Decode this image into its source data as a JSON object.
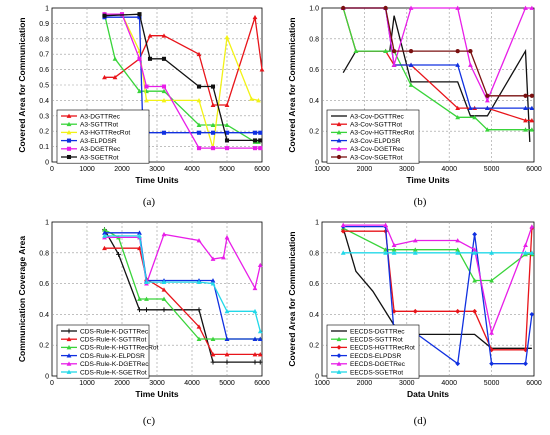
{
  "chart_data": [
    {
      "id": "a",
      "type": "line",
      "caption": "(a)",
      "xlabel": "Time Units",
      "ylabel": "Covered Area for Communication",
      "xlim": [
        0,
        6000
      ],
      "ylim": [
        0,
        1.0
      ],
      "xticks": [
        0,
        1000,
        2000,
        3000,
        4000,
        5000,
        6000
      ],
      "yticks": [
        0,
        0.1,
        0.2,
        0.3,
        0.4,
        0.5,
        0.6,
        0.7,
        0.8,
        0.9,
        1.0
      ],
      "ytick_labels": [
        "0",
        "0.1",
        "0.2",
        "0.3",
        "0.4",
        "0.5",
        "0.6",
        "0.7",
        "0.8",
        "0.9",
        "1"
      ],
      "grid": "both",
      "legend": "bottom-left",
      "series": [
        {
          "name": "A3-DGTTRec",
          "color": "#e8141a",
          "marker": "triangle",
          "x": [
            1500,
            1800,
            2500,
            2800,
            3200,
            4200,
            4600,
            5000,
            5800,
            6000
          ],
          "y": [
            0.55,
            0.55,
            0.67,
            0.82,
            0.82,
            0.7,
            0.37,
            0.37,
            0.94,
            0.6
          ]
        },
        {
          "name": "A3-SGTTRot",
          "color": "#39d43a",
          "marker": "triangle",
          "x": [
            1500,
            1800,
            2500,
            2700,
            3200,
            4200,
            4600,
            5000,
            5800,
            5900
          ],
          "y": [
            0.96,
            0.67,
            0.46,
            0.46,
            0.46,
            0.24,
            0.24,
            0.24,
            0.13,
            0.13
          ]
        },
        {
          "name": "A3-HGTTRecRot",
          "color": "#f2f216",
          "marker": "triangle",
          "x": [
            1500,
            2000,
            2500,
            2700,
            3200,
            4200,
            4600,
            5000,
            5700,
            5900
          ],
          "y": [
            0.96,
            0.96,
            0.72,
            0.4,
            0.4,
            0.4,
            0.09,
            0.81,
            0.41,
            0.4
          ]
        },
        {
          "name": "A3-ELPDSR",
          "color": "#1030e0",
          "marker": "square",
          "x": [
            1500,
            2500,
            2600,
            3200,
            4200,
            4600,
            5000,
            5800,
            5950
          ],
          "y": [
            0.94,
            0.94,
            0.19,
            0.19,
            0.19,
            0.19,
            0.19,
            0.19,
            0.19
          ]
        },
        {
          "name": "A3-DGETRec",
          "color": "#e81ee8",
          "marker": "square",
          "x": [
            1500,
            2000,
            2500,
            2700,
            3200,
            4200,
            4600,
            5000,
            5800,
            5950
          ],
          "y": [
            0.96,
            0.96,
            0.67,
            0.49,
            0.49,
            0.09,
            0.09,
            0.09,
            0.09,
            0.09
          ]
        },
        {
          "name": "A3-SGETRot",
          "color": "#111111",
          "marker": "square",
          "x": [
            1500,
            2500,
            2800,
            3200,
            4200,
            4600,
            5000,
            5800,
            5950
          ],
          "y": [
            0.95,
            0.96,
            0.67,
            0.67,
            0.49,
            0.49,
            0.14,
            0.14,
            0.14
          ]
        }
      ]
    },
    {
      "id": "b",
      "type": "line",
      "caption": "(b)",
      "xlabel": "Time Units",
      "ylabel": "Covered Area for Communication",
      "xlim": [
        1000,
        6000
      ],
      "ylim": [
        0,
        1.0
      ],
      "xticks": [
        1000,
        2000,
        3000,
        4000,
        5000,
        6000
      ],
      "yticks": [
        0,
        0.2,
        0.4,
        0.6,
        0.8,
        1.0
      ],
      "ytick_labels": [
        "0",
        "0.2",
        "0.4",
        "0.6",
        "0.8",
        "1.0"
      ],
      "grid": "both",
      "legend": "bottom-left",
      "series": [
        {
          "name": "A3-Cov-DGTTRec",
          "color": "#111111",
          "marker": "none",
          "x": [
            1500,
            1800,
            2600,
            2700,
            3100,
            4200,
            4500,
            4900,
            5800,
            5900
          ],
          "y": [
            0.58,
            0.72,
            0.72,
            0.95,
            0.52,
            0.52,
            0.3,
            0.3,
            0.72,
            0.13
          ]
        },
        {
          "name": "A3-Cov-SGTTRot",
          "color": "#e8141a",
          "marker": "triangle",
          "x": [
            1500,
            1800,
            2500,
            2700,
            3100,
            4200,
            4600,
            4900,
            5800,
            5950
          ],
          "y": [
            1.0,
            0.72,
            0.72,
            0.63,
            0.63,
            0.35,
            0.35,
            0.35,
            0.27,
            0.27
          ]
        },
        {
          "name": "A3-Cov-HGTTRecRot",
          "color": "#39d43a",
          "marker": "triangle",
          "x": [
            1500,
            1800,
            2500,
            2700,
            3100,
            4200,
            4600,
            4900,
            5800,
            5950
          ],
          "y": [
            1.0,
            0.72,
            0.72,
            0.72,
            0.5,
            0.29,
            0.29,
            0.21,
            0.21,
            0.21
          ]
        },
        {
          "name": "A3-Cov-ELPDSR",
          "color": "#1030e0",
          "marker": "triangle",
          "x": [
            1500,
            2500,
            2700,
            3100,
            4200,
            4500,
            4900,
            5800,
            5950
          ],
          "y": [
            1.0,
            1.0,
            0.63,
            0.63,
            0.63,
            0.35,
            0.35,
            0.35,
            0.35
          ]
        },
        {
          "name": "A3-Cov-DGETRec",
          "color": "#e81ee8",
          "marker": "triangle",
          "x": [
            1500,
            2500,
            2700,
            3100,
            4200,
            4500,
            4900,
            5800,
            5950
          ],
          "y": [
            1.0,
            1.0,
            0.63,
            1.0,
            1.0,
            0.63,
            0.4,
            1.0,
            1.0
          ]
        },
        {
          "name": "A3-Cov-SGETRot",
          "color": "#7a1010",
          "marker": "circle",
          "x": [
            1500,
            2500,
            2700,
            3100,
            4200,
            4500,
            4900,
            5800,
            5950
          ],
          "y": [
            1.0,
            1.0,
            0.72,
            0.72,
            0.72,
            0.72,
            0.43,
            0.43,
            0.43
          ]
        }
      ]
    },
    {
      "id": "c",
      "type": "line",
      "caption": "(c)",
      "xlabel": "Time Units",
      "ylabel": "Communication Coverage Area",
      "xlim": [
        0,
        6000
      ],
      "ylim": [
        0,
        1.0
      ],
      "xticks": [
        0,
        1000,
        2000,
        3000,
        4000,
        5000,
        6000
      ],
      "yticks": [
        0,
        0.2,
        0.4,
        0.6,
        0.8,
        1.0
      ],
      "ytick_labels": [
        "0",
        "0.2",
        "0.4",
        "0.6",
        "0.8",
        "1"
      ],
      "grid": "both",
      "legend": "bottom-left",
      "series": [
        {
          "name": "CDS-Rule-K-DGTTRec",
          "color": "#111111",
          "marker": "plus",
          "x": [
            1500,
            1900,
            2500,
            2700,
            3200,
            4200,
            4600,
            5000,
            5800,
            5950
          ],
          "y": [
            0.95,
            0.79,
            0.43,
            0.43,
            0.43,
            0.43,
            0.09,
            0.09,
            0.09,
            0.09
          ]
        },
        {
          "name": "CDS-Rule-K-SGTTRot",
          "color": "#e8141a",
          "marker": "triangle",
          "x": [
            1500,
            2500,
            2700,
            3200,
            4200,
            4600,
            5000,
            5800,
            5950
          ],
          "y": [
            0.83,
            0.83,
            0.63,
            0.56,
            0.32,
            0.14,
            0.14,
            0.14,
            0.14
          ]
        },
        {
          "name": "CDS-Rule-K-HGTTRecRot",
          "color": "#39d43a",
          "marker": "triangle",
          "x": [
            1500,
            1900,
            2500,
            2700,
            3200,
            4200,
            4600,
            5000,
            5800,
            5950
          ],
          "y": [
            0.95,
            0.9,
            0.5,
            0.5,
            0.5,
            0.24,
            0.24,
            0.24,
            0.24,
            0.24
          ]
        },
        {
          "name": "CDS-Rule-K-ELPDSR",
          "color": "#1030e0",
          "marker": "triangle",
          "x": [
            1500,
            2500,
            2700,
            3200,
            4200,
            4600,
            5000,
            5800,
            5950
          ],
          "y": [
            0.93,
            0.93,
            0.62,
            0.62,
            0.62,
            0.62,
            0.24,
            0.24,
            0.24
          ]
        },
        {
          "name": "CDS-Rule-K-DGETRec",
          "color": "#e81ee8",
          "marker": "triangle",
          "x": [
            1500,
            2500,
            2700,
            3200,
            4200,
            4600,
            4900,
            5000,
            5800,
            5950
          ],
          "y": [
            0.9,
            0.9,
            0.6,
            0.92,
            0.88,
            0.76,
            0.77,
            0.9,
            0.57,
            0.72
          ]
        },
        {
          "name": "CDS-Rule-K-SGETRot",
          "color": "#22d8e8",
          "marker": "triangle",
          "x": [
            1500,
            2500,
            2700,
            3200,
            4200,
            4600,
            5000,
            5800,
            5950
          ],
          "y": [
            0.91,
            0.91,
            0.61,
            0.61,
            0.61,
            0.6,
            0.42,
            0.42,
            0.29
          ]
        }
      ]
    },
    {
      "id": "d",
      "type": "line",
      "caption": "(d)",
      "xlabel": "Data Units",
      "ylabel": "Covered Area for Communication",
      "xlim": [
        1000,
        6000
      ],
      "ylim": [
        0,
        1.0
      ],
      "xticks": [
        1000,
        2000,
        3000,
        4000,
        5000,
        6000
      ],
      "yticks": [
        0,
        0.2,
        0.4,
        0.6,
        0.8,
        1.0
      ],
      "ytick_labels": [
        "0",
        "0.2",
        "0.4",
        "0.6",
        "0.8",
        "1"
      ],
      "grid": "both",
      "legend": "bottom-left",
      "series": [
        {
          "name": "EECDS-DGTTRec",
          "color": "#111111",
          "marker": "none",
          "x": [
            1500,
            1800,
            2200,
            2700,
            3200,
            4200,
            4600,
            5000,
            5800,
            5950
          ],
          "y": [
            0.96,
            0.68,
            0.55,
            0.33,
            0.27,
            0.27,
            0.27,
            0.18,
            0.18,
            0.18
          ]
        },
        {
          "name": "EECDS-SGTTRot",
          "color": "#39d43a",
          "marker": "triangle",
          "x": [
            1500,
            2500,
            2700,
            3200,
            4200,
            4600,
            5000,
            5800,
            5950
          ],
          "y": [
            0.96,
            0.82,
            0.82,
            0.82,
            0.82,
            0.62,
            0.62,
            0.79,
            0.79
          ]
        },
        {
          "name": "EECDS-HGTTRecRot",
          "color": "#e8141a",
          "marker": "diamond",
          "x": [
            1500,
            2500,
            2700,
            3200,
            4200,
            4600,
            5000,
            5800,
            5950
          ],
          "y": [
            0.94,
            0.94,
            0.42,
            0.42,
            0.42,
            0.42,
            0.17,
            0.17,
            0.96
          ]
        },
        {
          "name": "EECDS-ELPDSR",
          "color": "#1030e0",
          "marker": "diamond",
          "x": [
            1500,
            2500,
            2700,
            3200,
            4200,
            4600,
            5000,
            5800,
            5950
          ],
          "y": [
            0.97,
            0.97,
            0.28,
            0.28,
            0.08,
            0.92,
            0.08,
            0.08,
            0.4
          ]
        },
        {
          "name": "EECDS-DGETRec",
          "color": "#e81ee8",
          "marker": "triangle",
          "x": [
            1500,
            2500,
            2700,
            3200,
            4200,
            4600,
            5000,
            5800,
            5950
          ],
          "y": [
            0.98,
            0.98,
            0.85,
            0.88,
            0.88,
            0.82,
            0.28,
            0.85,
            0.97
          ]
        },
        {
          "name": "EECDS-SGETRot",
          "color": "#22d8e8",
          "marker": "triangle",
          "x": [
            1500,
            2500,
            2700,
            3200,
            4200,
            4600,
            5000,
            5800,
            5950
          ],
          "y": [
            0.8,
            0.8,
            0.8,
            0.8,
            0.8,
            0.8,
            0.8,
            0.8,
            0.8
          ]
        }
      ]
    }
  ]
}
